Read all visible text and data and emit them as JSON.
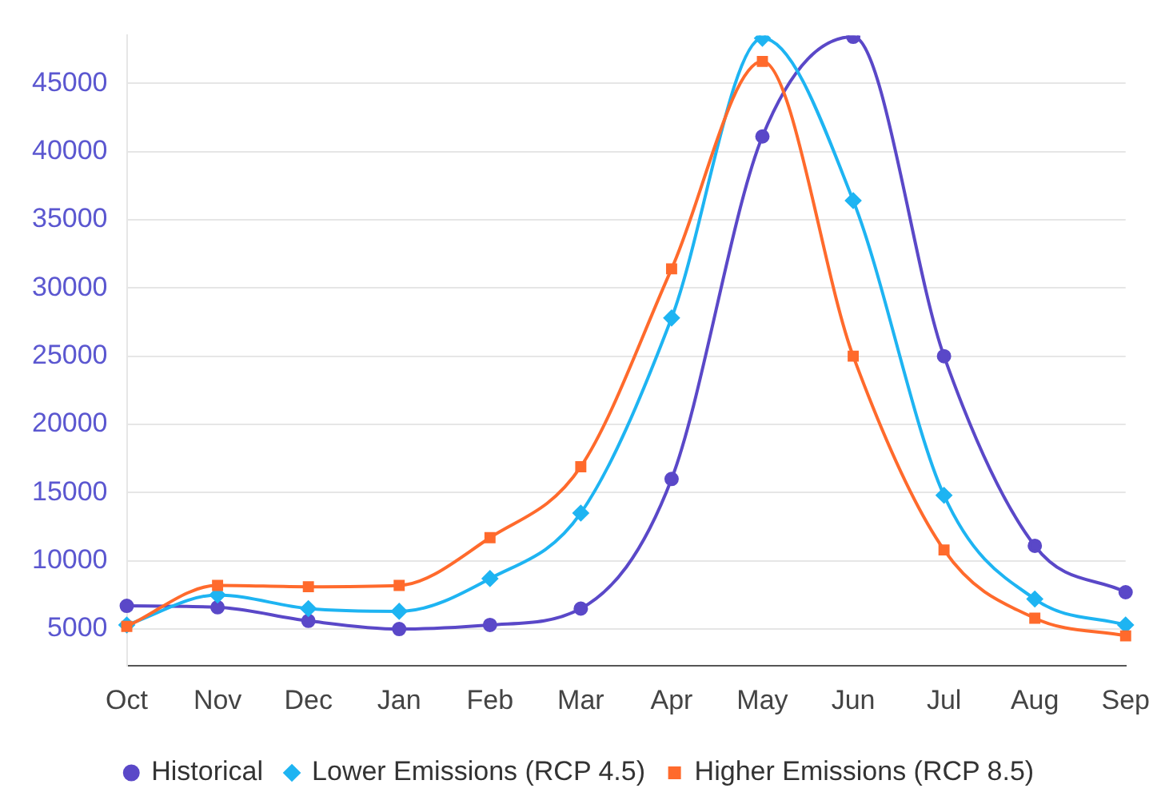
{
  "chart_data": {
    "type": "line",
    "categories": [
      "Oct",
      "Nov",
      "Dec",
      "Jan",
      "Feb",
      "Mar",
      "Apr",
      "May",
      "Jun",
      "Jul",
      "Aug",
      "Sep"
    ],
    "series": [
      {
        "name": "Historical",
        "color": "#5a48c8",
        "marker": "circle",
        "values": [
          6700,
          6600,
          5600,
          5000,
          5300,
          6500,
          16000,
          41100,
          48400,
          25000,
          11100,
          7700
        ]
      },
      {
        "name": "Lower Emissions (RCP 4.5)",
        "color": "#1eb4f2",
        "marker": "diamond",
        "values": [
          5300,
          7500,
          6500,
          6300,
          8700,
          13500,
          27800,
          48300,
          36400,
          14800,
          7200,
          5300
        ]
      },
      {
        "name": "Higher Emissions (RCP 8.5)",
        "color": "#ff6a2c",
        "marker": "square",
        "values": [
          5200,
          8200,
          8100,
          8200,
          11700,
          16900,
          31400,
          46600,
          25000,
          10800,
          5800,
          4500
        ]
      }
    ],
    "ylim": [
      2300,
      48500
    ],
    "yticks": [
      5000,
      10000,
      15000,
      20000,
      25000,
      30000,
      35000,
      40000,
      45000
    ],
    "grid": "y",
    "legend": "bottom"
  }
}
